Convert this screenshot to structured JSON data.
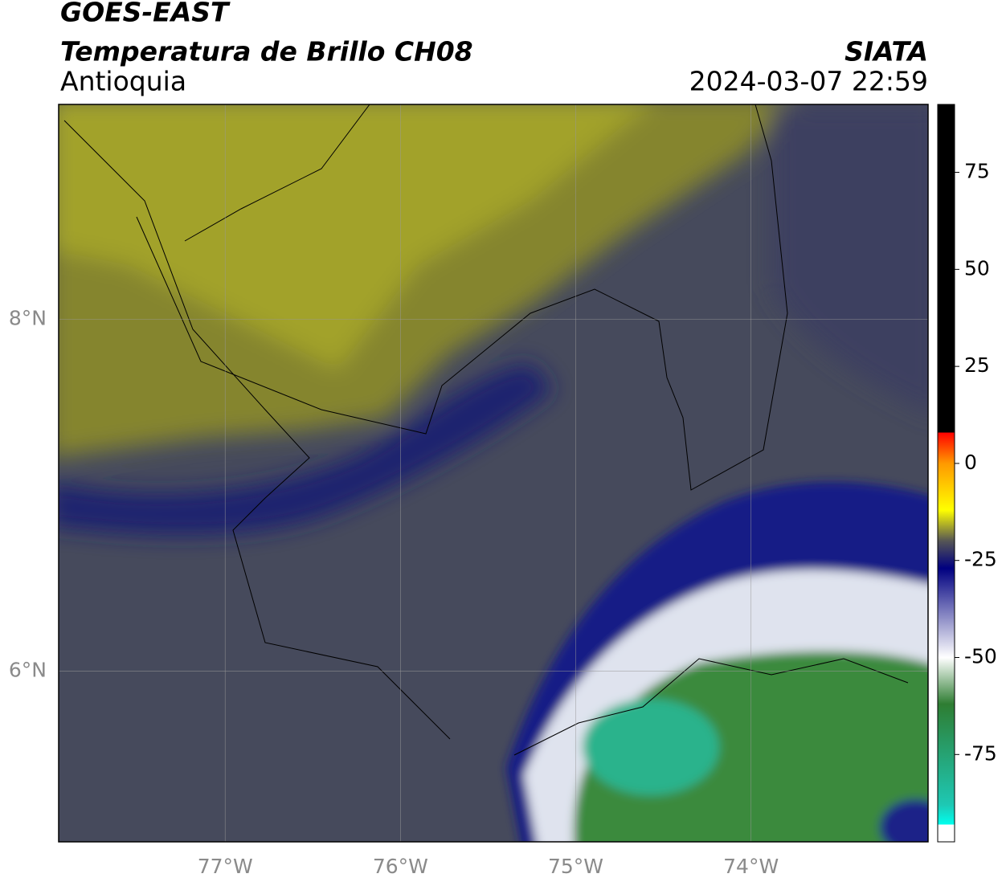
{
  "header": {
    "title": "GOES-EAST",
    "subtitle": "Temperatura de Brillo CH08",
    "region": "Antioquia",
    "source": "SIATA",
    "datetime": "2024-03-07 22:59"
  },
  "map": {
    "xlim": [
      -77.95,
      -72.99
    ],
    "ylim": [
      5.03,
      9.22
    ],
    "xticks": [
      {
        "value": -77,
        "label": "77°W"
      },
      {
        "value": -76,
        "label": "76°W"
      },
      {
        "value": -75,
        "label": "75°W"
      },
      {
        "value": -74,
        "label": "74°W"
      }
    ],
    "yticks": [
      {
        "value": 8,
        "label": "8°N"
      },
      {
        "value": 6,
        "label": "6°N"
      }
    ],
    "grid": true
  },
  "colorbar": {
    "lim": [
      -97.5,
      92.5
    ],
    "ticks": [
      75,
      50,
      25,
      0,
      -25,
      -50,
      -75
    ],
    "stops": [
      {
        "value": 92.5,
        "color": "#000000"
      },
      {
        "value": 8,
        "color": "#000000"
      },
      {
        "value": 8,
        "color": "#ff0000"
      },
      {
        "value": 0,
        "color": "#ff9900"
      },
      {
        "value": -12,
        "color": "#ffff00"
      },
      {
        "value": -20,
        "color": "#555555"
      },
      {
        "value": -27,
        "color": "#000080"
      },
      {
        "value": -50,
        "color": "#ffffff"
      },
      {
        "value": -62,
        "color": "#2e7d32"
      },
      {
        "value": -88,
        "color": "#1ec8b4"
      },
      {
        "value": -93,
        "color": "#00ffee"
      },
      {
        "value": -93,
        "color": "#ffffff"
      },
      {
        "value": -97.5,
        "color": "#ffffff"
      }
    ]
  }
}
